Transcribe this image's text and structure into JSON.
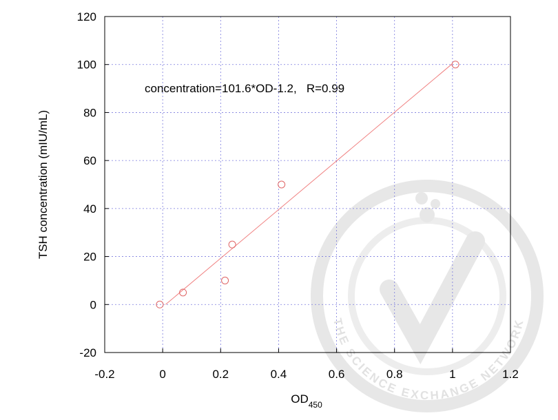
{
  "chart_data": {
    "type": "scatter",
    "xlabel": "OD",
    "xlabel_sub": "450",
    "ylabel": "TSH concentration (mIU/mL)",
    "annotation": "concentration=101.6*OD-1.2,   R=0.99",
    "x": [
      -0.01,
      0.07,
      0.215,
      0.24,
      0.41,
      1.01
    ],
    "y": [
      0,
      5,
      10,
      25,
      50,
      100
    ],
    "color": "#e06666",
    "fit": {
      "x": [
        0.01,
        1.0
      ],
      "y": [
        0,
        100.4
      ],
      "color": "#f08080"
    },
    "xlim": [
      -0.2,
      1.2
    ],
    "xticks": [
      -0.2,
      0,
      0.2,
      0.4,
      0.6,
      0.8,
      1,
      1.2
    ],
    "ylim": [
      -20,
      120
    ],
    "yticks": [
      -20,
      0,
      20,
      40,
      60,
      80,
      100,
      120
    ],
    "grid": true,
    "grid_color": "#7777dd",
    "watermark": "THE SCIENCE EXCHANGE NETWORK"
  }
}
